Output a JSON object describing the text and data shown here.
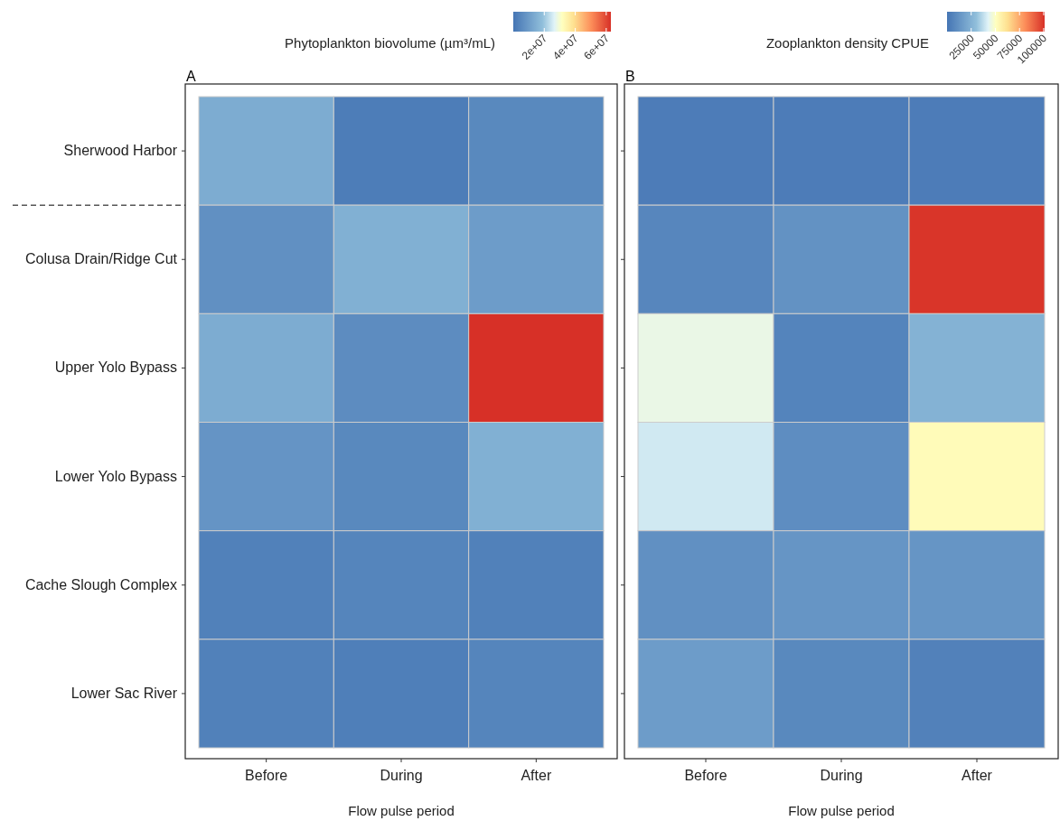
{
  "chart_data": [
    {
      "type": "heatmap",
      "title": "A",
      "xlabel": "Flow pulse period",
      "clabel": "Phytoplankton biovolume (µm³/mL)",
      "categories": [
        "Before",
        "During",
        "After"
      ],
      "y_categories": [
        "Sherwood Harbor",
        "Colusa Drain/Ridge Cut",
        "Upper Yolo Bypass",
        "Lower Yolo Bypass",
        "Cache Slough Complex",
        "Lower Sac River"
      ],
      "cells": [
        [
          14000000,
          2000000,
          5000000
        ],
        [
          7000000,
          15000000,
          10000000
        ],
        [
          14000000,
          6000000,
          63000000
        ],
        [
          8000000,
          5000000,
          15000000
        ],
        [
          3000000,
          4000000,
          3000000
        ],
        [
          3000000,
          2500000,
          4000000
        ]
      ],
      "clim": [
        0,
        63000000
      ],
      "cticks": [
        {
          "value": 20000000,
          "label": "2e+07"
        },
        {
          "value": 40000000,
          "label": "4e+07"
        },
        {
          "value": 60000000,
          "label": "6e+07"
        }
      ]
    },
    {
      "type": "heatmap",
      "title": "B",
      "xlabel": "Flow pulse period",
      "clabel": "Zooplankton density CPUE",
      "categories": [
        "Before",
        "During",
        "After"
      ],
      "y_categories": [
        null,
        null,
        null,
        null,
        null,
        null
      ],
      "tick_labels": "x",
      "cells": [
        [
          3000,
          3000,
          3000
        ],
        [
          7000,
          12000,
          100000
        ],
        [
          45000,
          6000,
          25000
        ],
        [
          40000,
          10000,
          52000
        ],
        [
          11000,
          13000,
          13000
        ],
        [
          16000,
          8000,
          5000
        ]
      ],
      "clim": [
        0,
        101000
      ],
      "cticks": [
        25000,
        50000,
        75000,
        100000
      ]
    }
  ]
}
